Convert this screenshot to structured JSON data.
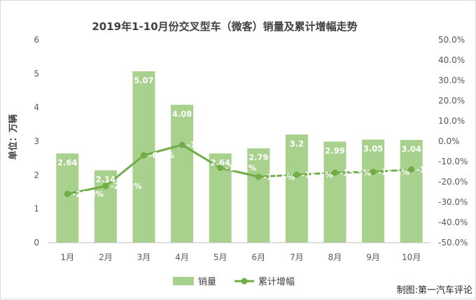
{
  "chart_data": {
    "type": "bar",
    "title": "2019年1-10月份交叉型车（微客）销量及累计增幅走势",
    "categories": [
      "1月",
      "2月",
      "3月",
      "4月",
      "5月",
      "6月",
      "7月",
      "8月",
      "9月",
      "10月"
    ],
    "series": [
      {
        "name": "销量",
        "type": "bar",
        "axis": "left",
        "values": [
          2.64,
          2.14,
          5.07,
          4.08,
          2.64,
          2.79,
          3.2,
          2.99,
          3.05,
          3.04
        ],
        "labels": [
          "2.64",
          "2.14",
          "5.07",
          "4.08",
          "2.64",
          "2.79",
          "3.2",
          "2.99",
          "3.05",
          "3.04"
        ]
      },
      {
        "name": "累计增幅",
        "type": "line",
        "axis": "right",
        "values": [
          -26.0,
          -22.1,
          -6.9,
          -1.8,
          -13.1,
          -17.5,
          -16.5,
          -15.5,
          -15.1,
          -13.9
        ],
        "labels": [
          "-26.0%",
          "-22.1%",
          "-6.9%",
          "-1.8%",
          "-13.1%",
          "-17.5%",
          "-16.5%",
          "-15.5%",
          "-15.1%",
          "-13.9%"
        ]
      }
    ],
    "ylabel": "单位：万辆",
    "ylim": [
      0,
      6
    ],
    "yticks": [
      "0",
      "1",
      "2",
      "3",
      "4",
      "5",
      "6"
    ],
    "y2lim": [
      -50,
      50
    ],
    "y2ticks": [
      "-50.0%",
      "-40.0%",
      "-30.0%",
      "-20.0%",
      "-10.0%",
      "0.0%",
      "10.0%",
      "20.0%",
      "30.0%",
      "40.0%",
      "50.0%"
    ],
    "legend_position": "bottom",
    "grid": false,
    "colors": {
      "bar": "#a9d18e",
      "line": "#70ad47"
    }
  },
  "credit": "制图:第一汽车评论"
}
